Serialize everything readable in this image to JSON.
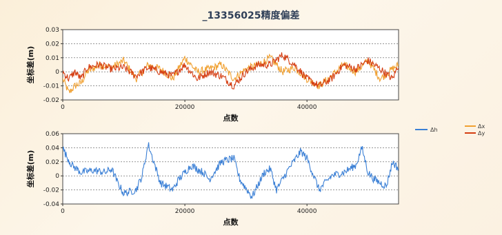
{
  "title": "_13356025精度偏差",
  "colors": {
    "dh": "#3a7fd5",
    "dx": "#f0a030",
    "dy": "#d43c10"
  },
  "chart_data": [
    {
      "type": "line",
      "title": "_13356025精度偏差",
      "xlabel": "点数",
      "ylabel": "坐标差(m)",
      "xlim": [
        0,
        55000
      ],
      "ylim": [
        -0.02,
        0.03
      ],
      "xticks": [
        "0",
        "20000",
        "40000"
      ],
      "yticks": [
        "0.03",
        "0.02",
        "0.01",
        "0",
        "-0.01",
        "-0.02"
      ],
      "grid": true,
      "legend_position": "right",
      "series": [
        {
          "name": "Δx",
          "x": [
            0,
            1000,
            2000,
            3000,
            4000,
            6000,
            8000,
            10000,
            12000,
            14000,
            16000,
            18000,
            20000,
            22000,
            24000,
            26000,
            28000,
            30000,
            32000,
            34000,
            36000,
            38000,
            40000,
            42000,
            44000,
            46000,
            48000,
            50000,
            52000,
            54000,
            55000
          ],
          "values": [
            -0.005,
            -0.015,
            -0.01,
            -0.008,
            0.0,
            0.005,
            0.003,
            0.008,
            -0.005,
            0.005,
            0.002,
            -0.005,
            0.01,
            0.0,
            0.002,
            0.005,
            -0.005,
            0.002,
            0.005,
            0.01,
            0.0,
            0.003,
            -0.005,
            -0.01,
            -0.003,
            0.005,
            0.0,
            0.008,
            -0.005,
            0.002,
            0.005
          ]
        },
        {
          "name": "Δy",
          "x": [
            0,
            1000,
            2000,
            3000,
            4000,
            6000,
            8000,
            10000,
            12000,
            14000,
            16000,
            18000,
            20000,
            22000,
            24000,
            26000,
            28000,
            30000,
            32000,
            34000,
            36000,
            38000,
            40000,
            42000,
            44000,
            46000,
            48000,
            50000,
            52000,
            54000,
            55000
          ],
          "values": [
            0.0,
            -0.005,
            0.0,
            -0.005,
            0.003,
            0.005,
            0.002,
            0.003,
            -0.003,
            0.003,
            0.0,
            -0.003,
            0.005,
            -0.005,
            0.0,
            -0.003,
            -0.01,
            0.0,
            0.005,
            0.005,
            0.012,
            0.005,
            -0.005,
            -0.01,
            -0.005,
            0.005,
            0.002,
            0.008,
            0.002,
            -0.005,
            0.005
          ]
        }
      ]
    },
    {
      "type": "line",
      "xlabel": "点数",
      "ylabel": "坐标差(m)",
      "xlim": [
        0,
        55000
      ],
      "ylim": [
        -0.04,
        0.06
      ],
      "xticks": [
        "0",
        "20000",
        "40000"
      ],
      "yticks": [
        "0.06",
        "0.04",
        "0.02",
        "0",
        "-0.02",
        "-0.04"
      ],
      "grid": true,
      "legend_position": "right",
      "series": [
        {
          "name": "Δh",
          "x": [
            0,
            500,
            1500,
            3000,
            5000,
            7000,
            8000,
            9000,
            10000,
            12000,
            13000,
            14000,
            16000,
            18000,
            19000,
            21000,
            23000,
            24000,
            26000,
            28000,
            29000,
            31000,
            33000,
            34000,
            35000,
            37000,
            39000,
            40000,
            42000,
            44000,
            46000,
            48000,
            49000,
            50000,
            51000,
            53000,
            54000,
            55000
          ],
          "values": [
            0.04,
            0.03,
            0.015,
            0.005,
            0.008,
            0.005,
            0.01,
            -0.01,
            -0.025,
            -0.02,
            0.0,
            0.045,
            -0.01,
            -0.02,
            -0.005,
            0.015,
            0.005,
            -0.005,
            0.02,
            0.025,
            -0.005,
            -0.03,
            0.005,
            0.01,
            -0.02,
            0.01,
            0.035,
            0.025,
            -0.02,
            0.0,
            0.005,
            0.015,
            0.04,
            0.005,
            -0.005,
            -0.015,
            0.02,
            0.01
          ]
        }
      ]
    }
  ]
}
